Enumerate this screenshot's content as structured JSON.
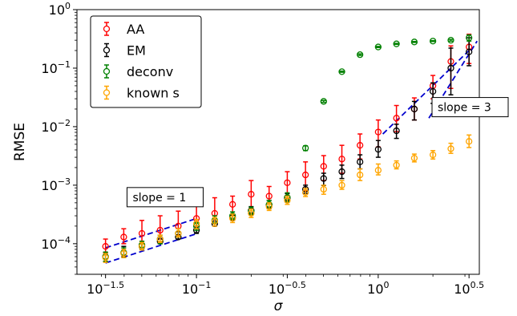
{
  "chart_data": {
    "type": "scatter",
    "xlabel": "σ",
    "ylabel": "RMSE",
    "x_scale": "log",
    "y_scale": "log",
    "xlim": [
      0.022,
      3.6
    ],
    "ylim": [
      3e-05,
      1.0
    ],
    "grid": false,
    "legend_position": "top-left",
    "x_ticks": [
      {
        "value": 0.0316,
        "base": "10",
        "exp": "−1.5"
      },
      {
        "value": 0.1,
        "base": "10",
        "exp": "−1"
      },
      {
        "value": 0.316,
        "base": "10",
        "exp": "−0.5"
      },
      {
        "value": 1.0,
        "base": "10",
        "exp": "0"
      },
      {
        "value": 3.16,
        "base": "10",
        "exp": "0.5"
      }
    ],
    "y_ticks": [
      {
        "value": 0.0001,
        "base": "10",
        "exp": "−4"
      },
      {
        "value": 0.001,
        "base": "10",
        "exp": "−3"
      },
      {
        "value": 0.01,
        "base": "10",
        "exp": "−2"
      },
      {
        "value": 0.1,
        "base": "10",
        "exp": "−1"
      },
      {
        "value": 1.0,
        "base": "10",
        "exp": "0"
      }
    ],
    "series": [
      {
        "name": "AA",
        "color": "#ff0000",
        "points": [
          {
            "x": 0.0316,
            "y": 9e-05,
            "lo": 7e-05,
            "hi": 0.00012
          },
          {
            "x": 0.0398,
            "y": 0.00013,
            "lo": 0.0001,
            "hi": 0.00018
          },
          {
            "x": 0.0501,
            "y": 0.00015,
            "lo": 0.00011,
            "hi": 0.00025
          },
          {
            "x": 0.0631,
            "y": 0.00017,
            "lo": 0.00012,
            "hi": 0.0003
          },
          {
            "x": 0.0794,
            "y": 0.0002,
            "lo": 0.00014,
            "hi": 0.00036
          },
          {
            "x": 0.1,
            "y": 0.00027,
            "lo": 0.0002,
            "hi": 0.00045
          },
          {
            "x": 0.126,
            "y": 0.00033,
            "lo": 0.00022,
            "hi": 0.00061
          },
          {
            "x": 0.158,
            "y": 0.00047,
            "lo": 0.0003,
            "hi": 0.00065
          },
          {
            "x": 0.2,
            "y": 0.0007,
            "lo": 0.00039,
            "hi": 0.0012
          },
          {
            "x": 0.251,
            "y": 0.00065,
            "lo": 0.0004,
            "hi": 0.00095
          },
          {
            "x": 0.316,
            "y": 0.0011,
            "lo": 0.0006,
            "hi": 0.0017
          },
          {
            "x": 0.398,
            "y": 0.0015,
            "lo": 0.0008,
            "hi": 0.0025
          },
          {
            "x": 0.501,
            "y": 0.0021,
            "lo": 0.0012,
            "hi": 0.0032
          },
          {
            "x": 0.631,
            "y": 0.0028,
            "lo": 0.0016,
            "hi": 0.0048
          },
          {
            "x": 0.794,
            "y": 0.0048,
            "lo": 0.0028,
            "hi": 0.0075
          },
          {
            "x": 1.0,
            "y": 0.0081,
            "lo": 0.0045,
            "hi": 0.013
          },
          {
            "x": 1.26,
            "y": 0.014,
            "lo": 0.0082,
            "hi": 0.023
          },
          {
            "x": 1.58,
            "y": 0.02,
            "lo": 0.013,
            "hi": 0.031
          },
          {
            "x": 2.0,
            "y": 0.05,
            "lo": 0.03,
            "hi": 0.075
          },
          {
            "x": 2.51,
            "y": 0.13,
            "lo": 0.045,
            "hi": 0.24
          },
          {
            "x": 3.16,
            "y": 0.23,
            "lo": 0.12,
            "hi": 0.38
          }
        ]
      },
      {
        "name": "EM",
        "color": "#000000",
        "points": [
          {
            "x": 0.0316,
            "y": 6e-05,
            "lo": 5e-05,
            "hi": 7e-05
          },
          {
            "x": 0.0398,
            "y": 7e-05,
            "lo": 6e-05,
            "hi": 9e-05
          },
          {
            "x": 0.0501,
            "y": 9e-05,
            "lo": 8e-05,
            "hi": 0.00011
          },
          {
            "x": 0.0631,
            "y": 0.00011,
            "lo": 0.0001,
            "hi": 0.00013
          },
          {
            "x": 0.0794,
            "y": 0.00013,
            "lo": 0.00012,
            "hi": 0.00016
          },
          {
            "x": 0.1,
            "y": 0.00017,
            "lo": 0.00015,
            "hi": 0.0002
          },
          {
            "x": 0.126,
            "y": 0.00022,
            "lo": 0.0002,
            "hi": 0.00026
          },
          {
            "x": 0.158,
            "y": 0.00028,
            "lo": 0.00025,
            "hi": 0.00032
          },
          {
            "x": 0.2,
            "y": 0.00037,
            "lo": 0.00032,
            "hi": 0.00043
          },
          {
            "x": 0.251,
            "y": 0.00046,
            "lo": 0.0004,
            "hi": 0.00055
          },
          {
            "x": 0.316,
            "y": 0.0006,
            "lo": 0.00051,
            "hi": 0.00072
          },
          {
            "x": 0.398,
            "y": 0.00085,
            "lo": 0.00072,
            "hi": 0.001
          },
          {
            "x": 0.501,
            "y": 0.0013,
            "lo": 0.00099,
            "hi": 0.0016
          },
          {
            "x": 0.631,
            "y": 0.0017,
            "lo": 0.0013,
            "hi": 0.0022
          },
          {
            "x": 0.794,
            "y": 0.0025,
            "lo": 0.0019,
            "hi": 0.0033
          },
          {
            "x": 1.0,
            "y": 0.0041,
            "lo": 0.003,
            "hi": 0.0058
          },
          {
            "x": 1.26,
            "y": 0.0085,
            "lo": 0.0063,
            "hi": 0.011
          },
          {
            "x": 1.58,
            "y": 0.02,
            "lo": 0.013,
            "hi": 0.027
          },
          {
            "x": 2.0,
            "y": 0.04,
            "lo": 0.025,
            "hi": 0.056
          },
          {
            "x": 2.51,
            "y": 0.1,
            "lo": 0.035,
            "hi": 0.22
          },
          {
            "x": 3.16,
            "y": 0.19,
            "lo": 0.11,
            "hi": 0.33
          }
        ]
      },
      {
        "name": "deconv",
        "color": "#008000",
        "points": [
          {
            "x": 0.0316,
            "y": 6e-05,
            "lo": 5e-05,
            "hi": 7.2e-05
          },
          {
            "x": 0.0398,
            "y": 7e-05,
            "lo": 5.8e-05,
            "hi": 8.5e-05
          },
          {
            "x": 0.0501,
            "y": 9.5e-05,
            "lo": 8e-05,
            "hi": 0.00011
          },
          {
            "x": 0.0631,
            "y": 0.00012,
            "lo": 0.0001,
            "hi": 0.00014
          },
          {
            "x": 0.0794,
            "y": 0.00015,
            "lo": 0.00013,
            "hi": 0.00018
          },
          {
            "x": 0.1,
            "y": 0.0002,
            "lo": 0.00017,
            "hi": 0.00023
          },
          {
            "x": 0.126,
            "y": 0.00025,
            "lo": 0.00022,
            "hi": 0.0003
          },
          {
            "x": 0.158,
            "y": 0.0003,
            "lo": 0.00026,
            "hi": 0.00035
          },
          {
            "x": 0.2,
            "y": 0.00036,
            "lo": 0.00031,
            "hi": 0.00042
          },
          {
            "x": 0.251,
            "y": 0.00047,
            "lo": 0.0004,
            "hi": 0.00055
          },
          {
            "x": 0.316,
            "y": 0.00062,
            "lo": 0.00052,
            "hi": 0.00074
          },
          {
            "x": 0.398,
            "y": 0.0043,
            "lo": 0.0039,
            "hi": 0.0047
          },
          {
            "x": 0.501,
            "y": 0.027,
            "lo": 0.026,
            "hi": 0.028
          },
          {
            "x": 0.631,
            "y": 0.087,
            "lo": 0.085,
            "hi": 0.089
          },
          {
            "x": 0.794,
            "y": 0.17,
            "lo": 0.165,
            "hi": 0.175
          },
          {
            "x": 1.0,
            "y": 0.23,
            "lo": 0.225,
            "hi": 0.235
          },
          {
            "x": 1.26,
            "y": 0.26,
            "lo": 0.255,
            "hi": 0.265
          },
          {
            "x": 1.58,
            "y": 0.28,
            "lo": 0.275,
            "hi": 0.285
          },
          {
            "x": 2.0,
            "y": 0.29,
            "lo": 0.285,
            "hi": 0.295
          },
          {
            "x": 2.51,
            "y": 0.3,
            "lo": 0.29,
            "hi": 0.31
          },
          {
            "x": 3.16,
            "y": 0.33,
            "lo": 0.29,
            "hi": 0.37
          }
        ]
      },
      {
        "name": "known s",
        "color": "#ffa500",
        "points": [
          {
            "x": 0.0316,
            "y": 5.8e-05,
            "lo": 4.8e-05,
            "hi": 6.8e-05
          },
          {
            "x": 0.0398,
            "y": 6.8e-05,
            "lo": 5.8e-05,
            "hi": 8e-05
          },
          {
            "x": 0.0501,
            "y": 9e-05,
            "lo": 7.8e-05,
            "hi": 0.000105
          },
          {
            "x": 0.0631,
            "y": 0.00012,
            "lo": 0.000105,
            "hi": 0.00014
          },
          {
            "x": 0.0794,
            "y": 0.00015,
            "lo": 0.00013,
            "hi": 0.00018
          },
          {
            "x": 0.1,
            "y": 0.00022,
            "lo": 0.00018,
            "hi": 0.00026
          },
          {
            "x": 0.126,
            "y": 0.00024,
            "lo": 0.0002,
            "hi": 0.00028
          },
          {
            "x": 0.158,
            "y": 0.00027,
            "lo": 0.00023,
            "hi": 0.00032
          },
          {
            "x": 0.2,
            "y": 0.00033,
            "lo": 0.00028,
            "hi": 0.00039
          },
          {
            "x": 0.251,
            "y": 0.00043,
            "lo": 0.00037,
            "hi": 0.0005
          },
          {
            "x": 0.316,
            "y": 0.00055,
            "lo": 0.00047,
            "hi": 0.00065
          },
          {
            "x": 0.398,
            "y": 0.00075,
            "lo": 0.00064,
            "hi": 0.00088
          },
          {
            "x": 0.501,
            "y": 0.00085,
            "lo": 0.0007,
            "hi": 0.001
          },
          {
            "x": 0.631,
            "y": 0.001,
            "lo": 0.00085,
            "hi": 0.0012
          },
          {
            "x": 0.794,
            "y": 0.0015,
            "lo": 0.0012,
            "hi": 0.0019
          },
          {
            "x": 1.0,
            "y": 0.0018,
            "lo": 0.0015,
            "hi": 0.0023
          },
          {
            "x": 1.26,
            "y": 0.0022,
            "lo": 0.0019,
            "hi": 0.0026
          },
          {
            "x": 1.58,
            "y": 0.0029,
            "lo": 0.0025,
            "hi": 0.0034
          },
          {
            "x": 2.0,
            "y": 0.0033,
            "lo": 0.0028,
            "hi": 0.0039
          },
          {
            "x": 2.51,
            "y": 0.0042,
            "lo": 0.0035,
            "hi": 0.0052
          },
          {
            "x": 3.16,
            "y": 0.0056,
            "lo": 0.0044,
            "hi": 0.0072
          }
        ]
      }
    ],
    "reference_lines": [
      {
        "label": "slope = 1",
        "color": "#0000cd",
        "segments": [
          {
            "from": [
              0.0316,
              4.68e-05
            ],
            "to": [
              0.1,
              0.000148
            ]
          },
          {
            "from": [
              0.0316,
              8.5e-05
            ],
            "to": [
              0.1,
              0.000269
            ]
          }
        ]
      },
      {
        "label": "slope = 3",
        "color": "#0000cd",
        "segments": [
          {
            "from": [
              1.06,
              0.0075
            ],
            "to": [
              3.16,
              0.2
            ]
          },
          {
            "from": [
              1.9,
              0.014
            ],
            "to": [
              3.5,
              0.29
            ]
          }
        ]
      }
    ],
    "annotations": [
      {
        "text": "slope = 1",
        "anchor": [
          0.045,
          0.00055
        ]
      },
      {
        "text": "slope = 3",
        "anchor": [
          3.0,
          0.019
        ]
      }
    ]
  }
}
